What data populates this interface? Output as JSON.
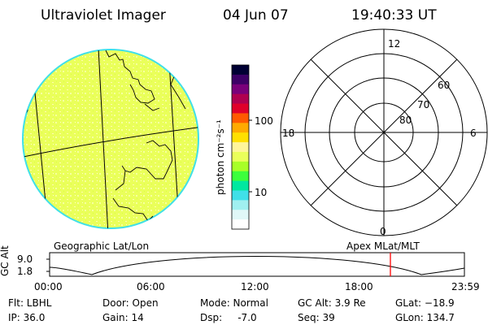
{
  "header": {
    "instrument": "Ultraviolet Imager",
    "date": "04 Jun 07",
    "time": "19:40:33 UT"
  },
  "colorbar": {
    "unit_label": "photon cm⁻²s⁻¹",
    "tick_labels": [
      "100",
      "10"
    ],
    "colors": [
      "#000033",
      "#3d0066",
      "#7a007a",
      "#b00050",
      "#e0002a",
      "#ff5a00",
      "#ffaa00",
      "#ffe000",
      "#fff59a",
      "#eaff5a",
      "#a8ff28",
      "#3cff3c",
      "#00e8a0",
      "#40e0e8",
      "#a0f0f0",
      "#e0f8f8",
      "#ffffff"
    ]
  },
  "polar_plot": {
    "mlt_labels": {
      "top": "12",
      "left": "18",
      "right": "6",
      "bottom": "0"
    },
    "lat_labels": [
      "60",
      "70",
      "80"
    ]
  },
  "imager": {
    "fill_color": "#eaff5a"
  },
  "timeline": {
    "left_title": "Geographic Lat/Lon",
    "right_title": "Apex MLat/MLT",
    "axis_label": "GC Alt",
    "y_ticks": [
      "9.0",
      "1.8"
    ],
    "x_ticks": [
      "00:00",
      "06:00",
      "12:00",
      "18:00",
      "23:59"
    ],
    "marker_color": "#ff0000"
  },
  "status": {
    "flt": "Flt: LBHL",
    "ip": "IP: 36.0",
    "door": "Door: Open",
    "gain": "Gain: 14",
    "mode": "Mode: Normal",
    "dsp": "Dsp:     -7.0",
    "gc_alt": "GC Alt: 3.9 Re",
    "seq": "Seq: 39",
    "glat": "GLat: −18.9",
    "glon": "GLon: 134.7"
  }
}
